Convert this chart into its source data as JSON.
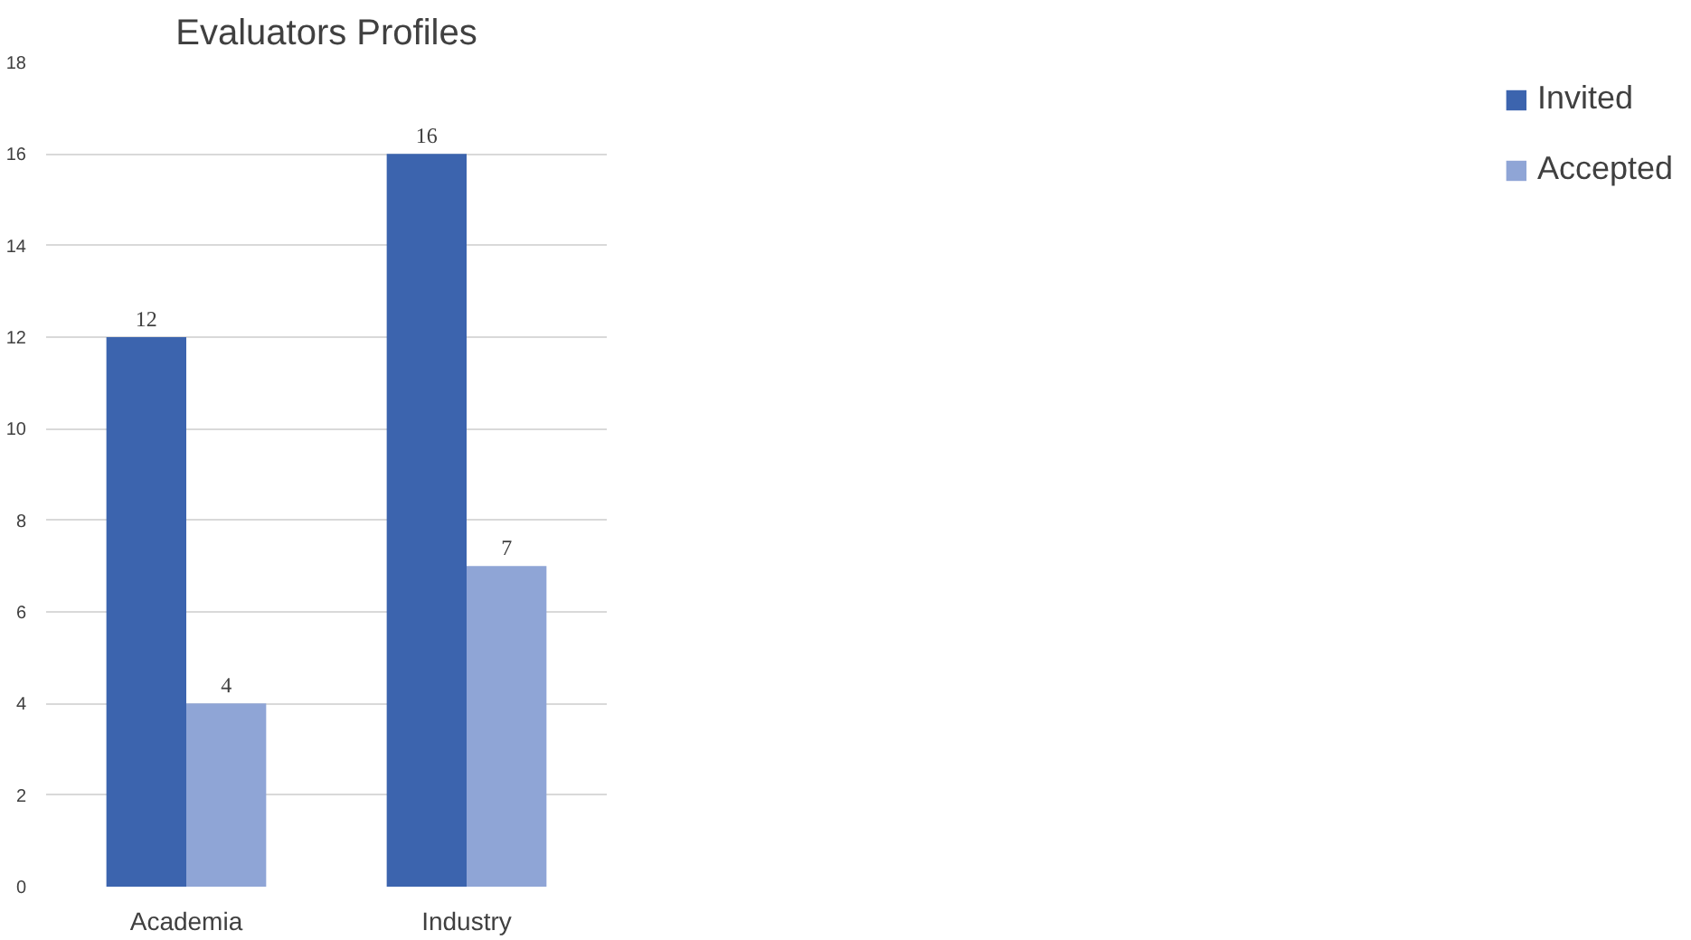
{
  "chart_data": {
    "type": "bar",
    "title": "Evaluators Profiles",
    "categories": [
      "Academia",
      "Industry"
    ],
    "series": [
      {
        "name": "Invited",
        "color": "#3c64ae",
        "values": [
          12,
          16
        ]
      },
      {
        "name": "Accepted",
        "color": "#8fa5d6",
        "values": [
          4,
          7
        ]
      }
    ],
    "ylim": [
      0,
      18
    ],
    "yticks": [
      0,
      2,
      4,
      6,
      8,
      10,
      12,
      14,
      16,
      18
    ],
    "grid": "y",
    "legend": "right",
    "data_labels": true
  }
}
